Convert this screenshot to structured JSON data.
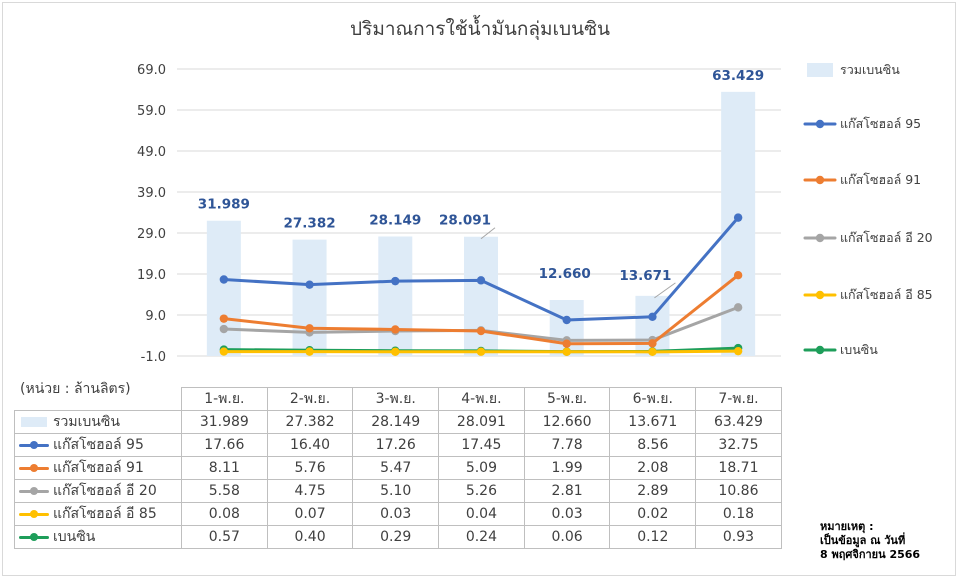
{
  "chart_data": {
    "type": "bar+line",
    "title": "ปริมาณการใช้น้ำมันกลุ่มเบนซิน",
    "categories": [
      "1-พ.ย.",
      "2-พ.ย.",
      "3-พ.ย.",
      "4-พ.ย.",
      "5-พ.ย.",
      "6-พ.ย.",
      "7-พ.ย."
    ],
    "y_ticks": [
      "69.0",
      "59.0",
      "49.0",
      "39.0",
      "29.0",
      "19.0",
      "9.0",
      "-1.0"
    ],
    "ylim": [
      -1,
      69
    ],
    "grid": true,
    "legend_position": "right",
    "series": [
      {
        "name": "รวมเบนซิน",
        "kind": "bar",
        "color": "#deebf7",
        "values": [
          31.989,
          27.382,
          28.149,
          28.091,
          12.66,
          13.671,
          63.429
        ],
        "labels": [
          "31.989",
          "27.382",
          "28.149",
          "28.091",
          "12.660",
          "13.671",
          "63.429"
        ],
        "data_labels": true
      },
      {
        "name": "แก๊สโซฮอล์ 95",
        "kind": "line",
        "color": "#4472c4",
        "values": [
          17.66,
          16.4,
          17.26,
          17.45,
          7.78,
          8.56,
          32.75
        ],
        "labels": [
          "17.66",
          "16.40",
          "17.26",
          "17.45",
          "7.78",
          "8.56",
          "32.75"
        ]
      },
      {
        "name": "แก๊สโซฮอล์ 91",
        "kind": "line",
        "color": "#ed7d31",
        "values": [
          8.11,
          5.76,
          5.47,
          5.09,
          1.99,
          2.08,
          18.71
        ],
        "labels": [
          "8.11",
          "5.76",
          "5.47",
          "5.09",
          "1.99",
          "2.08",
          "18.71"
        ]
      },
      {
        "name": "แก๊สโซฮอล์ อี 20",
        "kind": "line",
        "color": "#a5a5a5",
        "values": [
          5.58,
          4.75,
          5.1,
          5.26,
          2.81,
          2.89,
          10.86
        ],
        "labels": [
          "5.58",
          "4.75",
          "5.10",
          "5.26",
          "2.81",
          "2.89",
          "10.86"
        ]
      },
      {
        "name": "แก๊สโซฮอล์ อี 85",
        "kind": "line",
        "color": "#ffc000",
        "values": [
          0.08,
          0.07,
          0.03,
          0.04,
          0.03,
          0.02,
          0.18
        ],
        "labels": [
          "0.08",
          "0.07",
          "0.03",
          "0.04",
          "0.03",
          "0.02",
          "0.18"
        ]
      },
      {
        "name": "เบนซิน",
        "kind": "line",
        "color": "#1e9e5a",
        "values": [
          0.57,
          0.4,
          0.29,
          0.24,
          0.06,
          0.12,
          0.93
        ],
        "labels": [
          "0.57",
          "0.40",
          "0.29",
          "0.24",
          "0.06",
          "0.12",
          "0.93"
        ]
      }
    ]
  },
  "unit_note": "(หน่วย : ล้านลิตร)",
  "footnote": {
    "line1": "หมายเหตุ :",
    "line2": "เป็นข้อมูล ณ วันที่",
    "line3": "8 พฤศจิกายน 2566"
  }
}
